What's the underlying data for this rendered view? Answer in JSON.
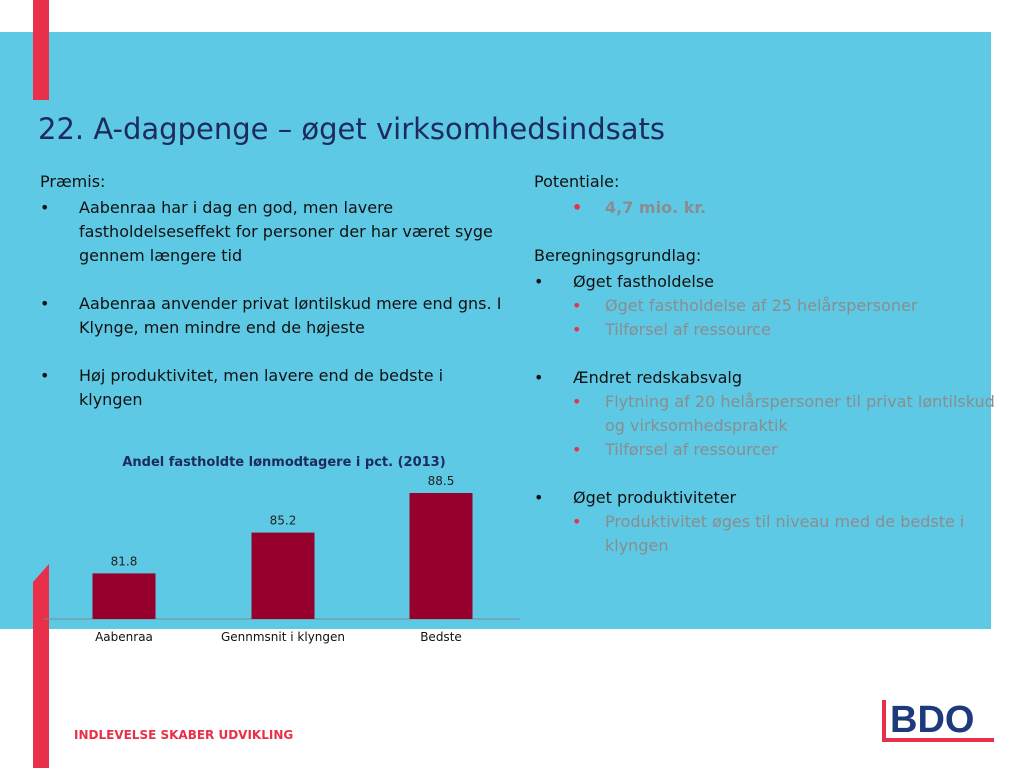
{
  "slide": {
    "title": "22. A-dagpenge – øget virksomhedsindsats",
    "footer": "INDLEVELSE SKABER UDVIKLING",
    "logo_text": "BDO",
    "colors": {
      "band": "#5ec9e4",
      "accent": "#e8304a",
      "title": "#1d2a5c",
      "bar": "#96002d",
      "muted": "#8a8d8f"
    }
  },
  "left": {
    "heading": "Præmis:",
    "bullets": [
      "Aabenraa har i dag en god, men lavere fastholdelseseffekt for personer der har været syge gennem længere tid",
      "Aabenraa anvender privat løntilskud mere end gns. I Klynge, men mindre end de højeste",
      "Høj produktivitet, men lavere end de bedste i klyngen"
    ]
  },
  "right": {
    "potential_heading": "Potentiale:",
    "potential_value": "4,7 mio. kr.",
    "basis_heading": "Beregningsgrundlag:",
    "groups": [
      {
        "label": "Øget fastholdelse",
        "items": [
          "Øget fastholdelse af 25 helårspersoner",
          "Tilførsel af ressource"
        ]
      },
      {
        "label": "Ændret redskabsvalg",
        "items": [
          "Flytning af 20 helårspersoner til privat løntilskud og virksomhedspraktik",
          "Tilførsel af ressourcer"
        ]
      },
      {
        "label": "Øget produktiviteter",
        "items": [
          "Produktivitet øges til niveau med de bedste i klyngen"
        ]
      }
    ]
  },
  "chart_data": {
    "type": "bar",
    "title": "Andel fastholdte lønmodtagere i pct. (2013)",
    "categories": [
      "Aabenraa",
      "Gennmsnit i klyngen",
      "Bedste"
    ],
    "values": [
      81.8,
      85.2,
      88.5
    ],
    "value_labels": [
      "81.8",
      "85.2",
      "88.5"
    ],
    "ylim": [
      78,
      88.5
    ],
    "grid": false,
    "legend": "none"
  }
}
